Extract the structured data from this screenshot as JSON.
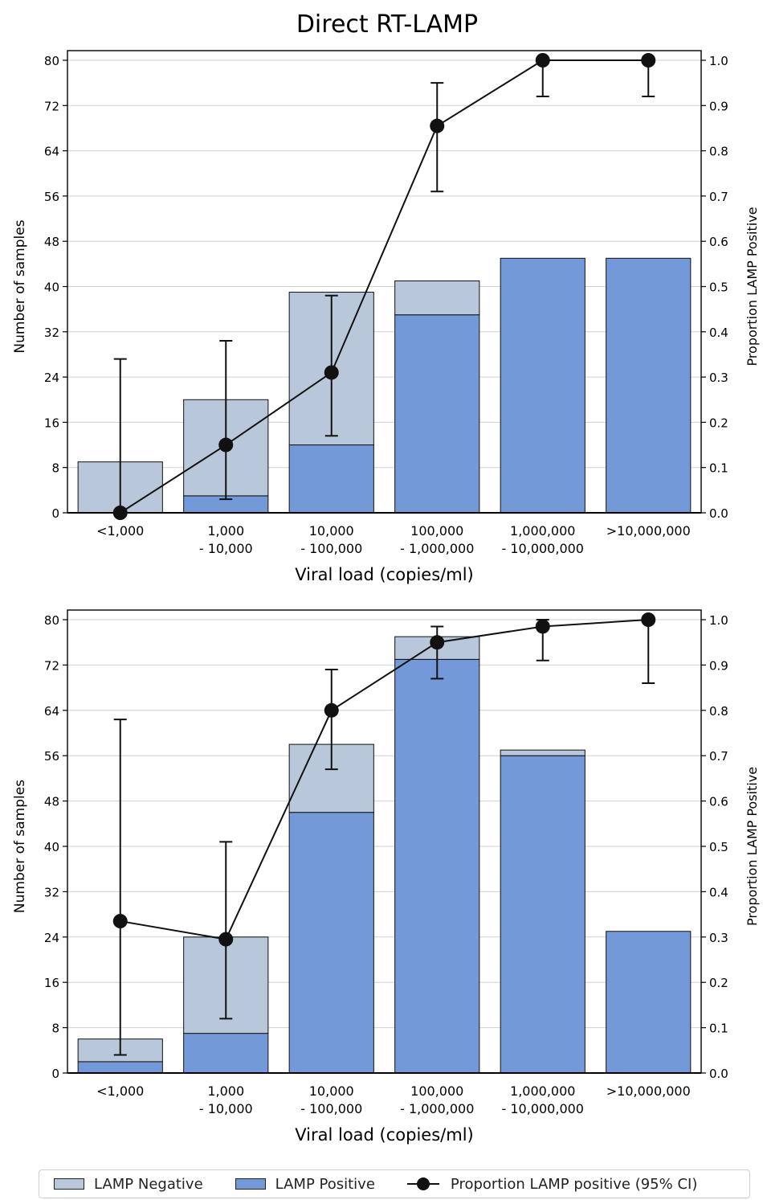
{
  "figure_title": "Direct RT-LAMP",
  "colors": {
    "negative": "#b8c7d9",
    "positive": "#7399d9",
    "line": "#111111",
    "grid": "#d0d0d0"
  },
  "legend": {
    "negative_label": "LAMP Negative",
    "positive_label": "LAMP Positive",
    "proportion_label": "Proportion LAMP positive (95% CI)"
  },
  "chart_data": [
    {
      "type": "bar",
      "stacked": true,
      "title": "",
      "xlabel": "Viral load (copies/ml)",
      "ylabel": "Number of samples",
      "y2label": "Proportion LAMP Positive",
      "ylim": [
        0,
        80
      ],
      "y2lim": [
        0,
        1.0
      ],
      "yticks": [
        "0",
        "8",
        "16",
        "24",
        "32",
        "40",
        "48",
        "56",
        "64",
        "72",
        "80"
      ],
      "y2ticks": [
        "0.0",
        "0.1",
        "0.2",
        "0.3",
        "0.4",
        "0.5",
        "0.6",
        "0.7",
        "0.8",
        "0.9",
        "1.0"
      ],
      "categories": [
        [
          "<1,000"
        ],
        [
          "1,000",
          "- 10,000"
        ],
        [
          "10,000",
          "- 100,000"
        ],
        [
          "100,000",
          "- 1,000,000"
        ],
        [
          "1,000,000",
          "- 10,000,000"
        ],
        [
          ">10,000,000"
        ]
      ],
      "series": [
        {
          "name": "LAMP Positive",
          "values": [
            0,
            3,
            12,
            35,
            45,
            45
          ]
        },
        {
          "name": "LAMP Negative",
          "values": [
            9,
            17,
            27,
            6,
            0,
            0
          ]
        }
      ],
      "proportion": {
        "name": "Proportion LAMP positive (95% CI)",
        "values": [
          0.0,
          0.15,
          0.31,
          0.855,
          1.0,
          1.0
        ],
        "ci_low": [
          0.0,
          0.03,
          0.17,
          0.71,
          0.92,
          0.92
        ],
        "ci_high": [
          0.34,
          0.38,
          0.48,
          0.95,
          1.0,
          1.0
        ]
      },
      "grid": "horizontal"
    },
    {
      "type": "bar",
      "stacked": true,
      "title": "",
      "xlabel": "Viral load (copies/ml)",
      "ylabel": "Number of samples",
      "y2label": "Proportion LAMP Positive",
      "ylim": [
        0,
        80
      ],
      "y2lim": [
        0,
        1.0
      ],
      "yticks": [
        "0",
        "8",
        "16",
        "24",
        "32",
        "40",
        "48",
        "56",
        "64",
        "72",
        "80"
      ],
      "y2ticks": [
        "0.0",
        "0.1",
        "0.2",
        "0.3",
        "0.4",
        "0.5",
        "0.6",
        "0.7",
        "0.8",
        "0.9",
        "1.0"
      ],
      "categories": [
        [
          "<1,000"
        ],
        [
          "1,000",
          "- 10,000"
        ],
        [
          "10,000",
          "- 100,000"
        ],
        [
          "100,000",
          "- 1,000,000"
        ],
        [
          "1,000,000",
          "- 10,000,000"
        ],
        [
          ">10,000,000"
        ]
      ],
      "series": [
        {
          "name": "LAMP Positive",
          "values": [
            2,
            7,
            46,
            73,
            56,
            25
          ]
        },
        {
          "name": "LAMP Negative",
          "values": [
            4,
            17,
            12,
            4,
            1,
            0
          ]
        }
      ],
      "proportion": {
        "name": "Proportion LAMP positive (95% CI)",
        "values": [
          0.335,
          0.295,
          0.8,
          0.95,
          0.985,
          1.0
        ],
        "ci_low": [
          0.04,
          0.12,
          0.67,
          0.87,
          0.91,
          0.86
        ],
        "ci_high": [
          0.78,
          0.51,
          0.89,
          0.985,
          1.0,
          1.0
        ]
      },
      "grid": "horizontal"
    }
  ]
}
